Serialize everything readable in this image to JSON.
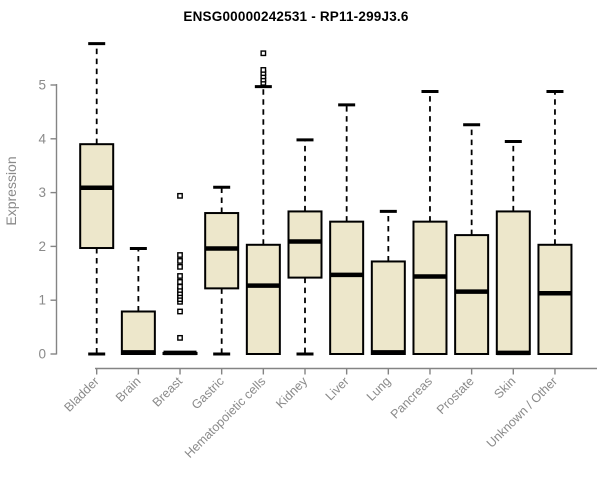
{
  "chart_data": {
    "type": "boxplot",
    "title": "ENSG00000242531 - RP11-299J3.6",
    "ylabel": "Expression",
    "xlabel": "",
    "yticks": [
      0,
      1,
      2,
      3,
      4,
      5
    ],
    "ylim": [
      0,
      5.8
    ],
    "grid": false,
    "legend": null,
    "categories": [
      "Bladder",
      "Brain",
      "Breast",
      "Gastric",
      "Hematopoietic cells",
      "Kidney",
      "Liver",
      "Lung",
      "Pancreas",
      "Prostate",
      "Skin",
      "Unknown / Other"
    ],
    "boxes": [
      {
        "category": "Bladder",
        "whisker_low": 0,
        "q1": 1.97,
        "median": 3.09,
        "q3": 3.9,
        "whisker_high": 5.77,
        "outliers": []
      },
      {
        "category": "Brain",
        "whisker_low": 0,
        "q1": 0.0,
        "median": 0.03,
        "q3": 0.79,
        "whisker_high": 1.96,
        "outliers": []
      },
      {
        "category": "Breast",
        "whisker_low": 0,
        "q1": 0.0,
        "median": 0.02,
        "q3": 0.02,
        "whisker_high": 0.04,
        "outliers": [
          0.3,
          0.79,
          0.97,
          1.02,
          1.08,
          1.13,
          1.19,
          1.25,
          1.34,
          1.45,
          1.62,
          1.73,
          1.84,
          2.94
        ]
      },
      {
        "category": "Gastric",
        "whisker_low": 0,
        "q1": 1.22,
        "median": 1.96,
        "q3": 2.62,
        "whisker_high": 3.1,
        "outliers": []
      },
      {
        "category": "Hematopoietic cells",
        "whisker_low": 0,
        "q1": 0.0,
        "median": 1.27,
        "q3": 2.03,
        "whisker_high": 4.97,
        "outliers": [
          5.04,
          5.1,
          5.16,
          5.22,
          5.28,
          5.59
        ]
      },
      {
        "category": "Kidney",
        "whisker_low": 0,
        "q1": 1.42,
        "median": 2.09,
        "q3": 2.65,
        "whisker_high": 3.98,
        "outliers": []
      },
      {
        "category": "Liver",
        "whisker_low": 0,
        "q1": 0.0,
        "median": 1.47,
        "q3": 2.46,
        "whisker_high": 4.63,
        "outliers": []
      },
      {
        "category": "Lung",
        "whisker_low": 0,
        "q1": 0.0,
        "median": 0.03,
        "q3": 1.72,
        "whisker_high": 2.65,
        "outliers": []
      },
      {
        "category": "Pancreas",
        "whisker_low": 0,
        "q1": 0.0,
        "median": 1.44,
        "q3": 2.46,
        "whisker_high": 4.88,
        "outliers": []
      },
      {
        "category": "Prostate",
        "whisker_low": 0,
        "q1": 0.0,
        "median": 1.16,
        "q3": 2.21,
        "whisker_high": 4.26,
        "outliers": []
      },
      {
        "category": "Skin",
        "whisker_low": 0,
        "q1": 0.0,
        "median": 0.02,
        "q3": 2.65,
        "whisker_high": 3.95,
        "outliers": []
      },
      {
        "category": "Unknown / Other",
        "whisker_low": 0,
        "q1": 0.0,
        "median": 1.13,
        "q3": 2.03,
        "whisker_high": 4.88,
        "outliers": []
      }
    ],
    "style": {
      "box_fill": "#EDE7CB",
      "box_border": "#000000",
      "median_color": "#000000",
      "whisker_color": "#000000",
      "axis_color": "#848484",
      "label_color": "#8A8A8A",
      "outlier_marker": "open-square",
      "background": "#FFFFFF"
    }
  }
}
